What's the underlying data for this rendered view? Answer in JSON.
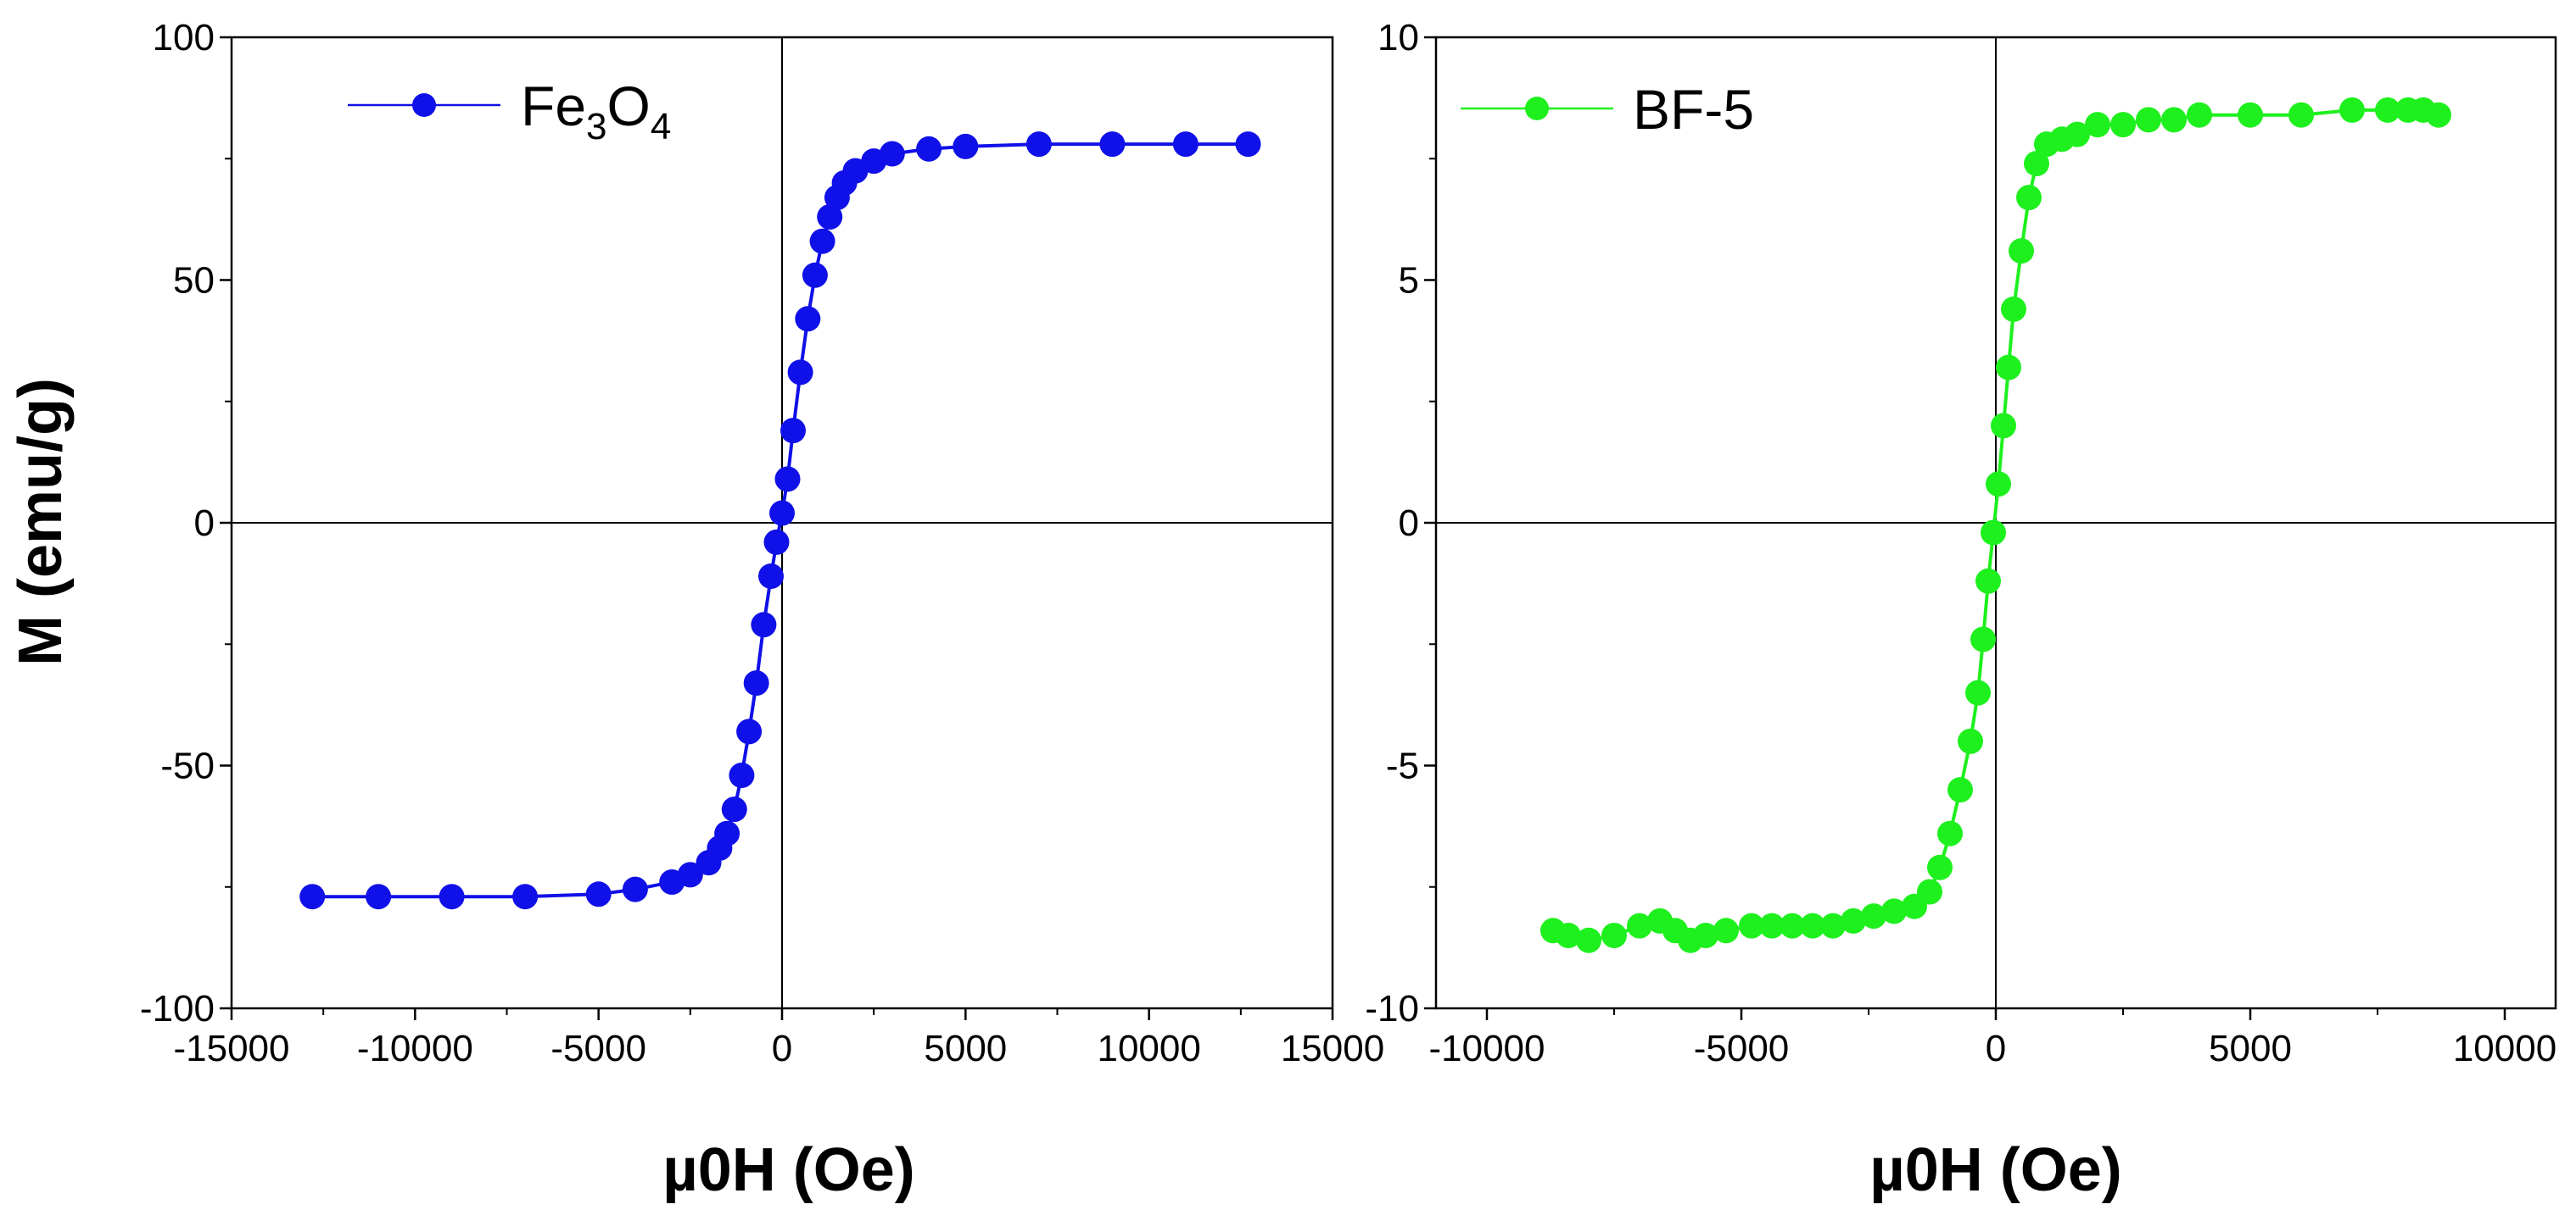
{
  "figure": {
    "ylabel": "M (emu/g)"
  },
  "chart_data": [
    {
      "type": "scatter",
      "title": "",
      "xlabel": "µ0H (Oe)",
      "ylabel": "M (emu/g)",
      "xlim": [
        -15000,
        15000
      ],
      "ylim": [
        -100,
        100
      ],
      "xticks": [
        -15000,
        -10000,
        -5000,
        0,
        5000,
        10000,
        15000
      ],
      "yticks": [
        -100,
        -50,
        0,
        50,
        100
      ],
      "xtick_labels": [
        "-15000",
        "-10000",
        "-5000",
        "0",
        "5000",
        "10000",
        "15000"
      ],
      "ytick_labels": [
        "-100",
        "-50",
        "0",
        "50",
        "100"
      ],
      "grid": false,
      "legend_position": "top-left",
      "series": [
        {
          "name": "Fe3O4",
          "legend_main": "Fe",
          "legend_sub1": "3",
          "legend_mid": "O",
          "legend_sub2": "4",
          "color": "#1010e8",
          "x": [
            -12800,
            -11000,
            -9000,
            -7000,
            -5000,
            -4000,
            -3000,
            -2500,
            -2000,
            -1700,
            -1500,
            -1300,
            -1100,
            -900,
            -700,
            -500,
            -300,
            -150,
            0,
            150,
            300,
            500,
            700,
            900,
            1100,
            1300,
            1500,
            1700,
            2000,
            2500,
            3000,
            4000,
            5000,
            7000,
            9000,
            11000,
            12700
          ],
          "y": [
            -77,
            -77,
            -77,
            -77,
            -76.5,
            -75.5,
            -74,
            -72.5,
            -70,
            -67,
            -64,
            -59,
            -52,
            -43,
            -33,
            -21,
            -11,
            -4,
            2,
            9,
            19,
            31,
            42,
            51,
            58,
            63,
            67,
            70,
            72.5,
            74.5,
            76,
            77,
            77.5,
            78,
            78,
            78,
            78
          ]
        }
      ]
    },
    {
      "type": "scatter",
      "title": "",
      "xlabel": "µ0H (Oe)",
      "ylabel": "",
      "xlim": [
        -11000,
        11000
      ],
      "ylim": [
        -10,
        10
      ],
      "xticks": [
        -10000,
        -5000,
        0,
        5000,
        10000
      ],
      "yticks": [
        -10,
        -5,
        0,
        5,
        10
      ],
      "xtick_labels": [
        "-10000",
        "-5000",
        "0",
        "5000",
        "10000"
      ],
      "ytick_labels": [
        "-10",
        "-5",
        "0",
        "5",
        "10"
      ],
      "grid": false,
      "legend_position": "top-left",
      "series": [
        {
          "name": "BF-5",
          "color": "#1ef01e",
          "x": [
            -8700,
            -8400,
            -8000,
            -7500,
            -7000,
            -6600,
            -6300,
            -6000,
            -5700,
            -5300,
            -4800,
            -4400,
            -4000,
            -3600,
            -3200,
            -2800,
            -2400,
            -2000,
            -1600,
            -1300,
            -1100,
            -900,
            -700,
            -500,
            -350,
            -250,
            -150,
            -50,
            50,
            150,
            250,
            350,
            500,
            650,
            800,
            1000,
            1300,
            1600,
            2000,
            2500,
            3000,
            3500,
            4000,
            5000,
            6000,
            7000,
            7700,
            8100,
            8400,
            8700
          ],
          "y": [
            -8.4,
            -8.5,
            -8.6,
            -8.5,
            -8.3,
            -8.2,
            -8.4,
            -8.6,
            -8.5,
            -8.4,
            -8.3,
            -8.3,
            -8.3,
            -8.3,
            -8.3,
            -8.2,
            -8.1,
            -8.0,
            -7.9,
            -7.6,
            -7.1,
            -6.4,
            -5.5,
            -4.5,
            -3.5,
            -2.4,
            -1.2,
            -0.2,
            0.8,
            2.0,
            3.2,
            4.4,
            5.6,
            6.7,
            7.4,
            7.8,
            7.9,
            8.0,
            8.2,
            8.2,
            8.3,
            8.3,
            8.4,
            8.4,
            8.4,
            8.5,
            8.5,
            8.5,
            8.5,
            8.4
          ]
        }
      ]
    }
  ]
}
